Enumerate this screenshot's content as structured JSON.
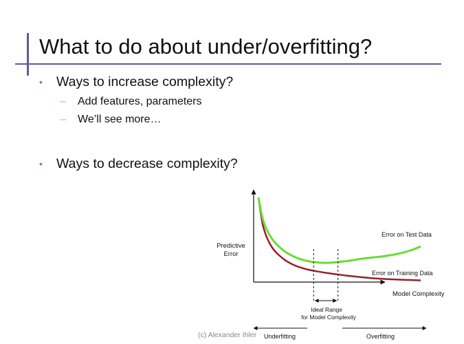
{
  "slide": {
    "title": "What to do about under/overfitting?",
    "bullets": [
      {
        "text": "Ways to increase complexity?",
        "subitems": [
          "Add features, parameters",
          "We’ll see more…"
        ]
      },
      {
        "text": "Ways to decrease complexity?",
        "subitems": []
      }
    ],
    "bullet_marker": "•",
    "sub_marker": "–",
    "footer_credit": "(c) Alexander Ihler"
  },
  "colors": {
    "rule": "#5a5aa8",
    "bullet": "#6c7fc2",
    "sub_marker": "#8ad08a",
    "test_curve": "#66dd33",
    "train_curve": "#9b1c2a"
  },
  "chart_data": {
    "type": "line",
    "ylabel": "Predictive Error",
    "ylabel_lines": [
      "Predictive",
      "Error"
    ],
    "xlabel": "Model Complexity",
    "series": [
      {
        "name": "Error on Test Data",
        "x": [
          0.0,
          0.03,
          0.08,
          0.15,
          0.22,
          0.3,
          0.38,
          0.45,
          0.55,
          0.65,
          0.75,
          0.85,
          0.93,
          1.0
        ],
        "y": [
          1.0,
          0.72,
          0.52,
          0.38,
          0.3,
          0.25,
          0.23,
          0.23,
          0.25,
          0.28,
          0.3,
          0.33,
          0.37,
          0.42
        ]
      },
      {
        "name": "Error on Training Data",
        "x": [
          0.0,
          0.03,
          0.08,
          0.15,
          0.22,
          0.3,
          0.38,
          0.45,
          0.55,
          0.65,
          0.75,
          0.85,
          0.93,
          1.0
        ],
        "y": [
          1.0,
          0.65,
          0.42,
          0.28,
          0.2,
          0.15,
          0.12,
          0.1,
          0.075,
          0.055,
          0.04,
          0.03,
          0.025,
          0.02
        ]
      }
    ],
    "ideal_range": [
      0.34,
      0.49
    ],
    "annotations": {
      "ideal_range_lines": [
        "Ideal Range",
        "for Model Complexity"
      ],
      "underfitting": "Underfitting",
      "overfitting": "Overfitting"
    }
  }
}
